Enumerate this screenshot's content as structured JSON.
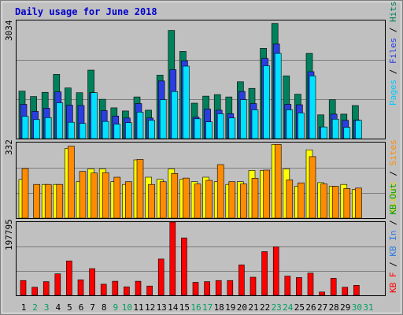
{
  "title": "Daily usage for June 2018",
  "chart_data": [
    {
      "type": "bar",
      "panel": "pages-files-hits",
      "ylim": [
        0,
        3034
      ],
      "ytick_label": "3034",
      "categories": [
        "1",
        "2",
        "3",
        "4",
        "5",
        "6",
        "7",
        "8",
        "9",
        "10",
        "11",
        "12",
        "13",
        "14",
        "15",
        "16",
        "17",
        "18",
        "19",
        "20",
        "21",
        "22",
        "23",
        "24",
        "25",
        "26",
        "27",
        "28",
        "29",
        "30",
        "31"
      ],
      "weekend_days": [
        "2",
        "3",
        "9",
        "10",
        "16",
        "17",
        "23",
        "24",
        "30",
        "31"
      ],
      "series": [
        {
          "name": "Hits",
          "color": "#00805c",
          "values": [
            1220,
            1080,
            1190,
            1650,
            1300,
            1180,
            1760,
            1010,
            790,
            710,
            1070,
            730,
            1630,
            2780,
            2240,
            910,
            1090,
            1130,
            1070,
            1460,
            1290,
            2320,
            2960,
            1610,
            1140,
            2190,
            610,
            1000,
            630,
            850,
            0
          ]
        },
        {
          "name": "Files",
          "color": "#2a3ee0",
          "values": [
            880,
            700,
            780,
            1200,
            860,
            850,
            1180,
            720,
            580,
            530,
            900,
            530,
            1480,
            1770,
            2000,
            550,
            760,
            730,
            640,
            1210,
            900,
            2060,
            2430,
            880,
            870,
            1720,
            300,
            630,
            470,
            480,
            0
          ]
        },
        {
          "name": "Pages",
          "color": "#00e0ff",
          "values": [
            570,
            490,
            540,
            920,
            420,
            390,
            1180,
            440,
            370,
            410,
            680,
            470,
            1000,
            1210,
            1860,
            510,
            430,
            640,
            530,
            1000,
            740,
            1870,
            2190,
            740,
            660,
            1610,
            300,
            500,
            290,
            470,
            0
          ]
        }
      ]
    },
    {
      "type": "bar",
      "panel": "visits-sites",
      "ylim": [
        0,
        332
      ],
      "ytick_label": "332",
      "series": [
        {
          "name": "Visits",
          "color": "#ffff00",
          "values": [
            170,
            0,
            148,
            148,
            306,
            160,
            216,
            216,
            160,
            148,
            256,
            180,
            170,
            216,
            170,
            160,
            180,
            160,
            148,
            160,
            210,
            210,
            324,
            216,
            140,
            300,
            156,
            140,
            148,
            126,
            0
          ]
        },
        {
          "name": "Sites",
          "color": "#ff8c00",
          "values": [
            218,
            148,
            148,
            148,
            316,
            205,
            198,
            200,
            180,
            160,
            258,
            148,
            160,
            196,
            176,
            150,
            166,
            235,
            160,
            150,
            175,
            211,
            324,
            168,
            155,
            270,
            150,
            140,
            130,
            132,
            0
          ]
        }
      ]
    },
    {
      "type": "bar",
      "panel": "kbytes",
      "ylim": [
        0,
        197795
      ],
      "ytick_label": "197795",
      "series": [
        {
          "name": "KB F",
          "color": "#ff0000",
          "values": [
            40000,
            22000,
            37000,
            58000,
            93000,
            42000,
            72000,
            30000,
            38000,
            23000,
            38000,
            25000,
            98000,
            197795,
            155000,
            35000,
            37000,
            40000,
            40000,
            82000,
            49000,
            118000,
            131000,
            52000,
            48000,
            60000,
            9000,
            46000,
            22000,
            27000,
            0
          ]
        }
      ]
    }
  ],
  "side_labels": [
    {
      "text": "Pages",
      "color": "#00c8ff"
    },
    {
      "text": " / ",
      "color": "#000000"
    },
    {
      "text": "Files",
      "color": "#2a3ee0"
    },
    {
      "text": " / ",
      "color": "#000000"
    },
    {
      "text": "Hits",
      "color": "#00805c"
    },
    {
      "text": "Visits",
      "color": "#e6d800"
    },
    {
      "text": " / ",
      "color": "#000000"
    },
    {
      "text": "Sites",
      "color": "#ff8c00"
    },
    {
      "text": "KB F",
      "color": "#ff0000"
    },
    {
      "text": " / ",
      "color": "#000000"
    },
    {
      "text": "KB In",
      "color": "#2a7ae0"
    },
    {
      "text": " / ",
      "color": "#000000"
    },
    {
      "text": "KB Out",
      "color": "#00a000"
    }
  ],
  "colors": {
    "panel_bg": "#c0c0c0",
    "frame_outer": "#808080",
    "grid": "#7c7c7c",
    "weekday": "#000000",
    "weekend": "#00a060"
  }
}
